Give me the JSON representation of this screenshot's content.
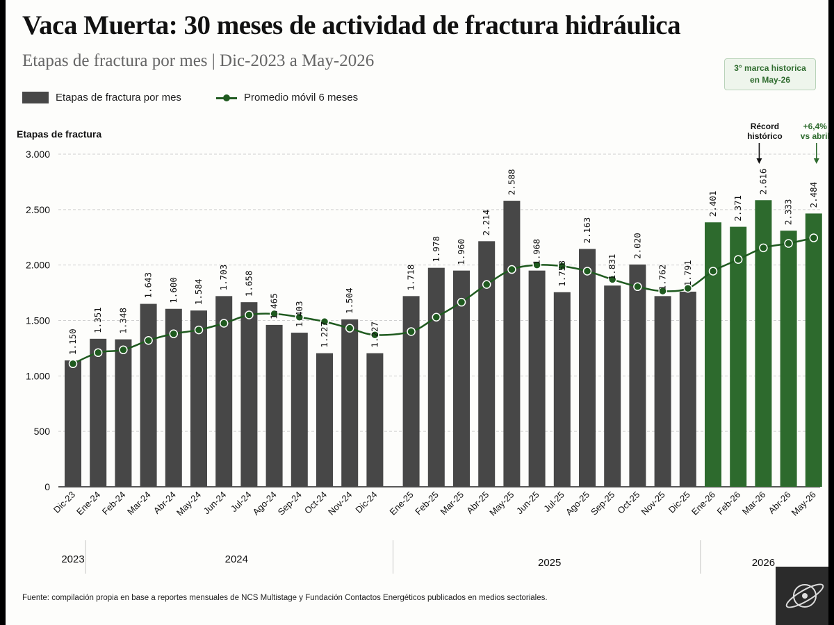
{
  "title": "Vaca Muerta: 30 meses de actividad de fractura hidráulica",
  "subtitle": "Etapas de fractura por mes | Dic-2023 a May-2026",
  "callout": "3° marca historica\nen May-26",
  "footer": "Fuente: compilación propia en base a reportes mensuales de NCS Multistage y Fundación Contactos Energéticos publicados en medios sectoriales.",
  "colors": {
    "bar": "#474747",
    "bar_highlight": "#2d6a2d",
    "line": "#1f5a1f",
    "annotation_dark": "#111111",
    "annotation_green": "#2e6b2e"
  },
  "chart_data": {
    "type": "bar",
    "ylabel": "Etapas de fractura",
    "ylim": [
      0,
      3000
    ],
    "yticks": [
      0,
      500,
      1000,
      1500,
      2000,
      2500,
      3000
    ],
    "ytick_labels": [
      "0",
      "500",
      "1.000",
      "1.500",
      "2.000",
      "2.500",
      "3.000"
    ],
    "grid": true,
    "legend_position": "top-left",
    "categories": [
      "Dic-23",
      "Ene-24",
      "Feb-24",
      "Mar-24",
      "Abr-24",
      "May-24",
      "Jun-24",
      "Jul-24",
      "Ago-24",
      "Sep-24",
      "Oct-24",
      "Nov-24",
      "Dic-24",
      "Ene-25",
      "Feb-25",
      "Mar-25",
      "Abr-25",
      "May-25",
      "Jun-25",
      "Jul-25",
      "Ago-25",
      "Sep-25",
      "Oct-25",
      "Nov-25",
      "Dic-25",
      "Ene-26",
      "Feb-26",
      "Mar-26",
      "Abr-26",
      "May-26"
    ],
    "series": [
      {
        "name": "Etapas de fractura por mes",
        "kind": "bar",
        "values": [
          1140,
          1335,
          1330,
          1650,
          1605,
          1590,
          1720,
          1665,
          1460,
          1390,
          1205,
          1510,
          1205,
          1720,
          1975,
          1950,
          2215,
          2580,
          1950,
          1755,
          2145,
          1815,
          2005,
          1720,
          1760,
          2385,
          2345,
          2585,
          2310,
          2465
        ],
        "labels": [
          "1.150",
          "1.351",
          "1.348",
          "1.643",
          "1.600",
          "1.584",
          "1.703",
          "1.658",
          "1.465",
          "1.403",
          "1.227",
          "1.504",
          "1.227",
          "1.718",
          "1.978",
          "1.960",
          "2.214",
          "2.588",
          "1.968",
          "1.758",
          "2.163",
          "1.831",
          "2.020",
          "1.762",
          "1.791",
          "2.401",
          "2.371",
          "2.616",
          "2.333",
          "2.484"
        ],
        "highlight": [
          "Ene-26",
          "Feb-26",
          "Mar-26",
          "Abr-26",
          "May-26"
        ]
      },
      {
        "name": "Promedio móvil 6 meses",
        "kind": "line",
        "values": [
          1110,
          1210,
          1235,
          1320,
          1380,
          1415,
          1475,
          1550,
          1560,
          1530,
          1490,
          1430,
          1370,
          1400,
          1530,
          1665,
          1825,
          1960,
          2000,
          1990,
          1945,
          1870,
          1805,
          1765,
          1790,
          1945,
          2050,
          2155,
          2195,
          2245
        ]
      }
    ],
    "year_groups": [
      {
        "label": "2023",
        "start": 0,
        "end": 0
      },
      {
        "label": "2024",
        "start": 1,
        "end": 12
      },
      {
        "label": "2025",
        "start": 13,
        "end": 24
      },
      {
        "label": "2026",
        "start": 25,
        "end": 29
      }
    ],
    "annotations": [
      {
        "text": [
          "Récord",
          "histórico"
        ],
        "category": "Mar-26",
        "color": "dark"
      },
      {
        "text": [
          "+6,4%",
          "vs abril"
        ],
        "category": "May-26",
        "color": "green"
      }
    ]
  }
}
